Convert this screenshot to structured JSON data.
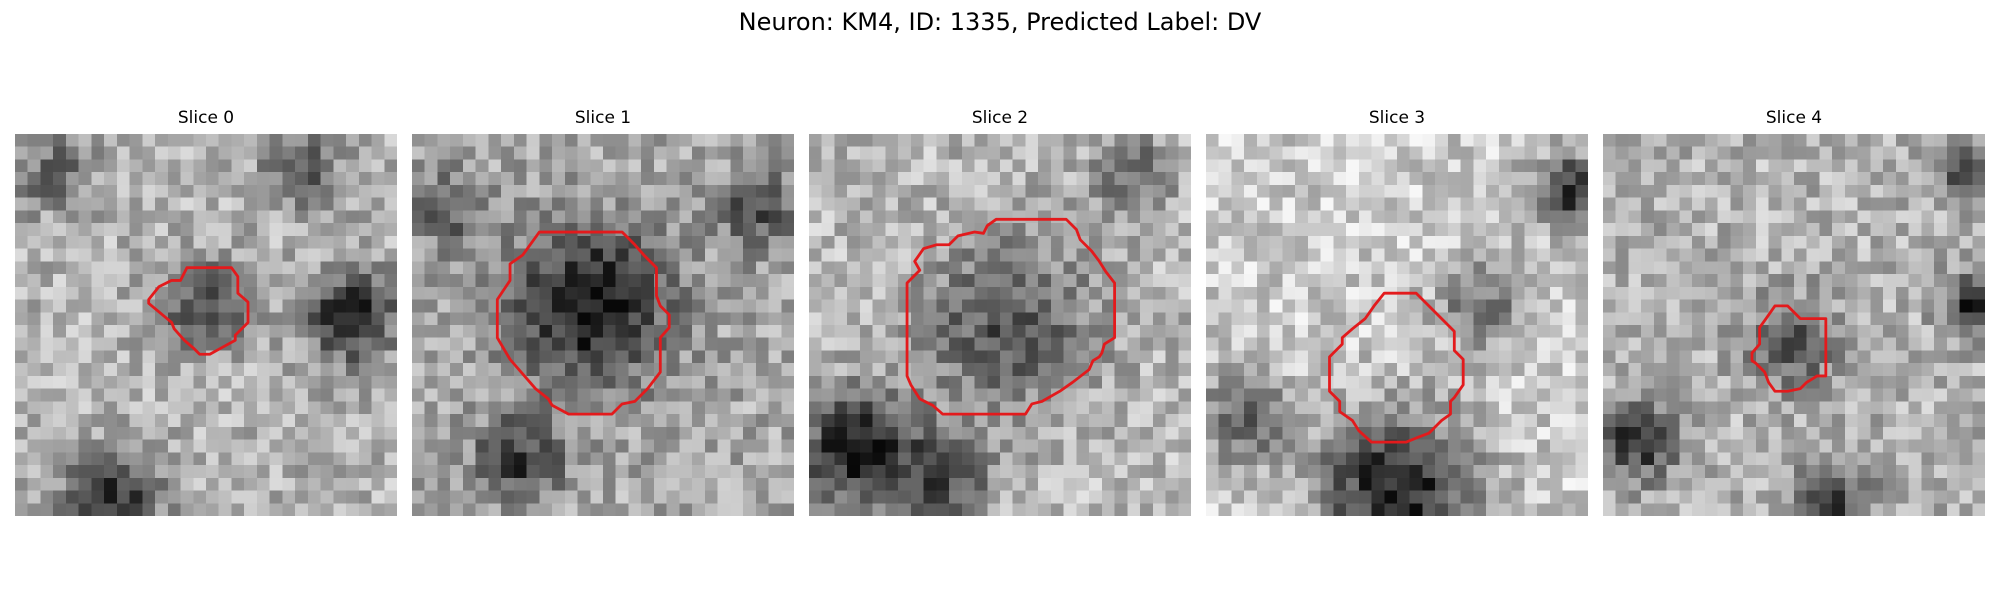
{
  "figure": {
    "title": "Neuron: KM4, ID: 1335, Predicted Label: DV"
  },
  "panels": [
    {
      "title": "Slice 0",
      "seed": 11,
      "base": 0.7,
      "overlay_color": "#e31a1c",
      "dark_spots": [
        [
          0.5,
          0.45,
          0.11,
          0.45
        ],
        [
          0.88,
          0.48,
          0.12,
          0.55
        ],
        [
          0.25,
          0.95,
          0.12,
          0.55
        ],
        [
          0.75,
          0.1,
          0.1,
          0.35
        ],
        [
          0.1,
          0.1,
          0.1,
          0.3
        ]
      ]
    },
    {
      "title": "Slice 1",
      "seed": 23,
      "base": 0.66,
      "overlay_color": "#e31a1c",
      "dark_spots": [
        [
          0.47,
          0.45,
          0.2,
          0.6
        ],
        [
          0.28,
          0.85,
          0.11,
          0.45
        ],
        [
          0.1,
          0.2,
          0.1,
          0.3
        ],
        [
          0.9,
          0.2,
          0.1,
          0.35
        ]
      ]
    },
    {
      "title": "Slice 2",
      "seed": 37,
      "base": 0.72,
      "overlay_color": "#e31a1c",
      "dark_spots": [
        [
          0.52,
          0.5,
          0.22,
          0.4
        ],
        [
          0.12,
          0.82,
          0.14,
          0.65
        ],
        [
          0.35,
          0.9,
          0.12,
          0.45
        ],
        [
          0.85,
          0.1,
          0.1,
          0.35
        ]
      ]
    },
    {
      "title": "Slice 3",
      "seed": 41,
      "base": 0.8,
      "overlay_color": "#e31a1c",
      "dark_spots": [
        [
          0.5,
          0.93,
          0.2,
          0.7
        ],
        [
          0.72,
          0.45,
          0.12,
          0.35
        ],
        [
          0.95,
          0.15,
          0.1,
          0.6
        ],
        [
          0.1,
          0.75,
          0.12,
          0.45
        ]
      ]
    },
    {
      "title": "Slice 4",
      "seed": 53,
      "base": 0.7,
      "overlay_color": "#e31a1c",
      "dark_spots": [
        [
          0.5,
          0.55,
          0.12,
          0.35
        ],
        [
          0.1,
          0.8,
          0.1,
          0.55
        ],
        [
          0.97,
          0.45,
          0.08,
          0.55
        ],
        [
          0.6,
          0.97,
          0.1,
          0.5
        ],
        [
          0.95,
          0.1,
          0.08,
          0.4
        ]
      ]
    }
  ]
}
